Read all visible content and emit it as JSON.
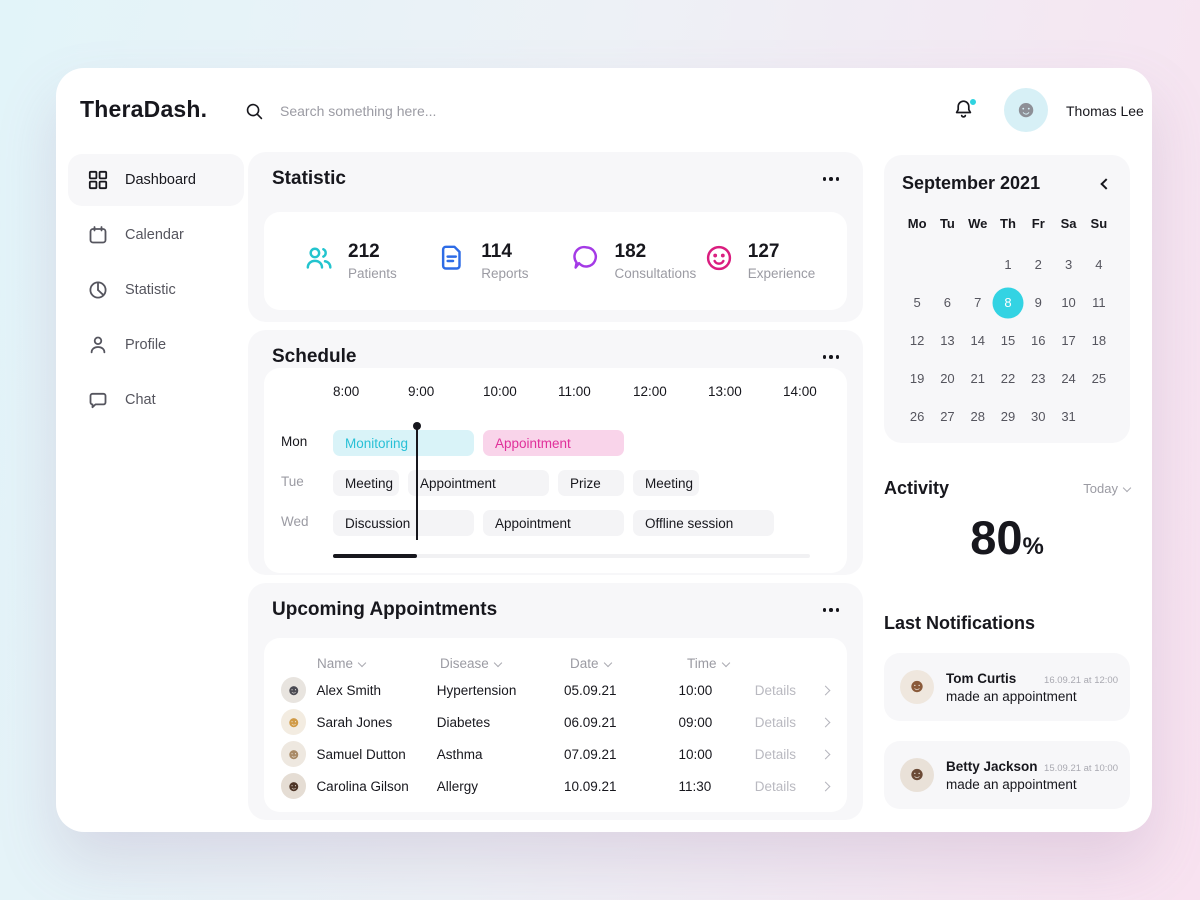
{
  "header": {
    "logo": "TheraDash.",
    "search_placeholder": "Search something here...",
    "user_name": "Thomas Lee"
  },
  "sidebar": {
    "items": [
      {
        "label": "Dashboard",
        "icon": "dashboard-icon",
        "active": true
      },
      {
        "label": "Calendar",
        "icon": "calendar-icon",
        "active": false
      },
      {
        "label": "Statistic",
        "icon": "statistic-icon",
        "active": false
      },
      {
        "label": "Profile",
        "icon": "profile-icon",
        "active": false
      },
      {
        "label": "Chat",
        "icon": "chat-icon",
        "active": false
      }
    ]
  },
  "statistic": {
    "title": "Statistic",
    "cards": [
      {
        "value": "212",
        "label": "Patients",
        "icon": "patients-icon",
        "color": "#23c4ce"
      },
      {
        "value": "114",
        "label": "Reports",
        "icon": "reports-icon",
        "color": "#2e6ce6"
      },
      {
        "value": "182",
        "label": "Consultations",
        "icon": "consultations-icon",
        "color": "#a43ae6"
      },
      {
        "value": "127",
        "label": "Experience",
        "icon": "experience-icon",
        "color": "#da1d7f"
      }
    ]
  },
  "schedule": {
    "title": "Schedule",
    "times": [
      "8:00",
      "9:00",
      "10:00",
      "11:00",
      "12:00",
      "13:00",
      "14:00"
    ],
    "rows": [
      {
        "day": "Mon",
        "active": true,
        "events": [
          {
            "label": "Monitoring",
            "start": 8,
            "end": 10,
            "variant": "cyan"
          },
          {
            "label": "Appointment",
            "start": 10,
            "end": 12,
            "variant": "pink"
          }
        ]
      },
      {
        "day": "Tue",
        "active": false,
        "events": [
          {
            "label": "Meeting",
            "start": 8,
            "end": 9,
            "variant": "plain"
          },
          {
            "label": "Appointment",
            "start": 9,
            "end": 11,
            "variant": "plain"
          },
          {
            "label": "Prize",
            "start": 11,
            "end": 12,
            "variant": "plain"
          },
          {
            "label": "Meeting",
            "start": 12,
            "end": 13,
            "variant": "plain"
          }
        ]
      },
      {
        "day": "Wed",
        "active": false,
        "events": [
          {
            "label": "Discussion",
            "start": 8,
            "end": 10,
            "variant": "plain"
          },
          {
            "label": "Appointment",
            "start": 10,
            "end": 12,
            "variant": "plain"
          },
          {
            "label": "Offline session",
            "start": 12,
            "end": 14,
            "variant": "plain"
          }
        ]
      }
    ]
  },
  "appointments": {
    "title": "Upcoming Appointments",
    "columns": [
      "Name",
      "Disease",
      "Date",
      "Time"
    ],
    "details_label": "Details",
    "rows": [
      {
        "name": "Alex Smith",
        "disease": "Hypertension",
        "date": "05.09.21",
        "time": "10:00",
        "avatar_color": "#4a4a52",
        "avatar_bg": "#e8e4df"
      },
      {
        "name": "Sarah Jones",
        "disease": "Diabetes",
        "date": "06.09.21",
        "time": "09:00",
        "avatar_color": "#d09a46",
        "avatar_bg": "#f3ece1"
      },
      {
        "name": "Samuel Dutton",
        "disease": "Asthma",
        "date": "07.09.21",
        "time": "10:00",
        "avatar_color": "#a98a66",
        "avatar_bg": "#eee8e0"
      },
      {
        "name": "Carolina Gilson",
        "disease": "Allergy",
        "date": "10.09.21",
        "time": "11:30",
        "avatar_color": "#4e3527",
        "avatar_bg": "#e5ddd4"
      }
    ]
  },
  "calendar": {
    "month": "September 2021",
    "weekdays": [
      "Mo",
      "Tu",
      "We",
      "Th",
      "Fr",
      "Sa",
      "Su"
    ],
    "weeks": [
      [
        "",
        "",
        "",
        "1",
        "2",
        "3",
        "4"
      ],
      [
        "5",
        "6",
        "7",
        "8",
        "9",
        "10",
        "11"
      ],
      [
        "12",
        "13",
        "14",
        "15",
        "16",
        "17",
        "18"
      ],
      [
        "19",
        "20",
        "21",
        "22",
        "23",
        "24",
        "25"
      ],
      [
        "26",
        "27",
        "28",
        "29",
        "30",
        "31",
        ""
      ]
    ],
    "selected_day": "8"
  },
  "activity": {
    "title": "Activity",
    "filter_label": "Today",
    "value": "80",
    "unit": "%"
  },
  "notifications": {
    "title": "Last Notifications",
    "items": [
      {
        "name": "Tom Curtis",
        "timestamp": "16.09.21 at 12:00",
        "text": "made an appointment",
        "avatar_color": "#8a5a3a",
        "avatar_bg": "#efe7de"
      },
      {
        "name": "Betty Jackson",
        "timestamp": "15.09.21 at 10:00",
        "text": "made an appointment",
        "avatar_color": "#6b4a36",
        "avatar_bg": "#e9e1d8"
      }
    ]
  },
  "colors": {
    "accent_cyan": "#2fd3e0",
    "accent_pink": "#e0309a",
    "selected_day_bg": "#33d3e3"
  }
}
